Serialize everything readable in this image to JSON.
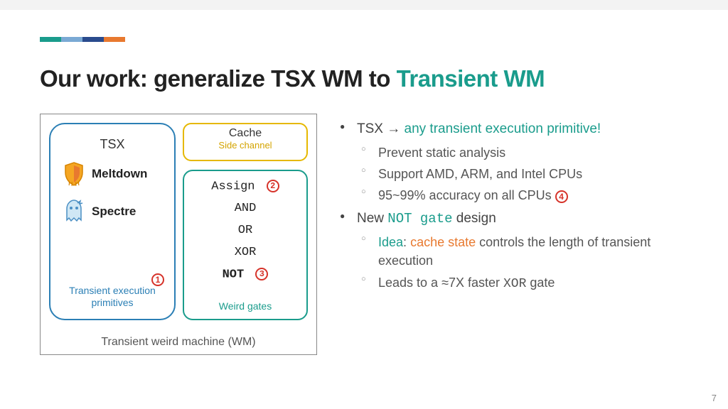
{
  "accent_colors": [
    "#1a9c8c",
    "#7aa9d4",
    "#2a4b8d",
    "#e8792f"
  ],
  "accent_widths": [
    30,
    30,
    30,
    30
  ],
  "title_prefix": "Our work: generalize TSX WM to ",
  "title_highlight": "Transient WM",
  "diagram": {
    "tsx_label": "TSX",
    "meltdown": "Meltdown",
    "spectre": "Spectre",
    "tsx_caption_l1": "Transient execution",
    "tsx_caption_l2": "primitives",
    "num1": "1",
    "cache_title": "Cache",
    "cache_sub": "Side channel",
    "gate_assign": "Assign",
    "num2": "2",
    "gate_and": "AND",
    "gate_or": "OR",
    "gate_xor": "XOR",
    "gate_not": "NOT",
    "num3": "3",
    "gates_caption": "Weird gates",
    "wm_caption": "Transient weird machine (WM)"
  },
  "bullets": {
    "b1_pre": "TSX → ",
    "b1_hl": "any transient execution primitive!",
    "b1a": "Prevent static analysis",
    "b1b": "Support AMD, ARM, and Intel CPUs",
    "b1c_pre": "95~99% accuracy on all CPUs ",
    "num4": "4",
    "b2_pre": "New ",
    "b2_mono": "NOT gate",
    "b2_post": " design",
    "b2a_idea": "Idea",
    "b2a_mid": ": ",
    "b2a_cache": "cache state",
    "b2a_post": " controls the length of transient execution",
    "b2b_pre": "Leads to a ≈7X faster ",
    "b2b_mono": "XOR",
    "b2b_post": " gate"
  },
  "page_number": "7"
}
